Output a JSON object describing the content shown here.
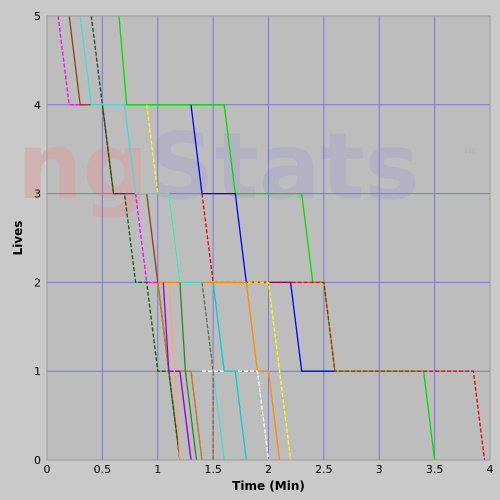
{
  "chart_data": {
    "type": "line",
    "xlabel": "Time (Min)",
    "ylabel": "Lives",
    "xlim": [
      0,
      4
    ],
    "ylim": [
      0,
      5
    ],
    "x_ticks": [
      "0",
      "0.5",
      "1",
      "1.5",
      "2",
      "2.5",
      "3",
      "3.5",
      "4"
    ],
    "y_ticks": [
      "0",
      "1",
      "2",
      "3",
      "4",
      "5"
    ],
    "grid": true,
    "watermark": {
      "text": "ngStats",
      "trademark": "™",
      "color_ng": "#d9a1a1",
      "color_stats": "#aaaac8"
    },
    "colors": {
      "background": "#bdbdbd",
      "grid": "#7878d8",
      "frame": "#c9c9c9"
    },
    "series": [
      {
        "color": "#00dd00",
        "dash": false,
        "points": [
          [
            0.65,
            5
          ],
          [
            0.72,
            4
          ],
          [
            1.6,
            4
          ],
          [
            1.7,
            3
          ],
          [
            2.3,
            3
          ],
          [
            2.4,
            2
          ],
          [
            2.5,
            2
          ],
          [
            2.6,
            1
          ],
          [
            3.4,
            1
          ],
          [
            3.5,
            0
          ]
        ]
      },
      {
        "color": "#0000ee",
        "dash": false,
        "points": [
          [
            1.3,
            4
          ],
          [
            1.4,
            3
          ],
          [
            1.7,
            3
          ],
          [
            1.8,
            2
          ],
          [
            2.2,
            2
          ],
          [
            2.3,
            1
          ],
          [
            2.6,
            1
          ]
        ]
      },
      {
        "color": "#ee0000",
        "dash": true,
        "points": [
          [
            1.4,
            3
          ],
          [
            1.5,
            2
          ],
          [
            2.5,
            2
          ],
          [
            2.6,
            1
          ],
          [
            3.45,
            1
          ],
          [
            3.85,
            1
          ],
          [
            3.95,
            0
          ]
        ]
      },
      {
        "color": "#ffff00",
        "dash": true,
        "points": [
          [
            0.9,
            4
          ],
          [
            1.0,
            3
          ],
          [
            1.1,
            3
          ],
          [
            1.2,
            2
          ],
          [
            2.0,
            2
          ],
          [
            2.1,
            1
          ],
          [
            2.2,
            0
          ]
        ]
      },
      {
        "color": "#ff8c00",
        "dash": false,
        "points": [
          [
            0.9,
            2
          ],
          [
            1.8,
            2
          ],
          [
            1.9,
            1
          ],
          [
            2.0,
            1
          ],
          [
            2.1,
            0
          ]
        ]
      },
      {
        "color": "#ffffff",
        "dash": true,
        "points": [
          [
            1.4,
            1
          ],
          [
            1.9,
            1
          ],
          [
            2.0,
            0
          ]
        ]
      },
      {
        "color": "#e080ff",
        "dash": false,
        "points": [
          [
            0.4,
            5
          ],
          [
            0.5,
            4
          ],
          [
            0.7,
            4
          ],
          [
            0.8,
            3
          ],
          [
            0.9,
            3
          ],
          [
            1.0,
            2
          ],
          [
            1.1,
            1
          ],
          [
            1.2,
            1
          ],
          [
            1.3,
            0
          ]
        ]
      },
      {
        "color": "#ff00ff",
        "dash": true,
        "points": [
          [
            0.1,
            5
          ],
          [
            0.2,
            4
          ],
          [
            0.5,
            4
          ],
          [
            0.6,
            3
          ],
          [
            0.8,
            3
          ],
          [
            0.9,
            2
          ],
          [
            1.0,
            2
          ],
          [
            1.1,
            1
          ],
          [
            1.3,
            1
          ],
          [
            1.4,
            0
          ]
        ]
      },
      {
        "color": "#8b4513",
        "dash": false,
        "points": [
          [
            0.2,
            5
          ],
          [
            0.3,
            4
          ],
          [
            0.5,
            4
          ],
          [
            0.6,
            3
          ],
          [
            0.9,
            3
          ],
          [
            1.0,
            2
          ],
          [
            1.1,
            1
          ],
          [
            1.2,
            0
          ]
        ]
      },
      {
        "color": "#006400",
        "dash": true,
        "points": [
          [
            0.4,
            5
          ],
          [
            0.5,
            4
          ],
          [
            0.6,
            3
          ],
          [
            0.7,
            3
          ],
          [
            0.8,
            2
          ],
          [
            0.9,
            2
          ],
          [
            1.0,
            1
          ],
          [
            1.1,
            1
          ],
          [
            1.2,
            0
          ]
        ]
      },
      {
        "color": "#40e0d0",
        "dash": false,
        "points": [
          [
            0.3,
            5
          ],
          [
            0.4,
            4
          ],
          [
            0.7,
            4
          ],
          [
            0.8,
            3
          ],
          [
            1.1,
            3
          ],
          [
            1.2,
            2
          ],
          [
            1.4,
            2
          ],
          [
            1.5,
            1
          ],
          [
            1.6,
            0
          ]
        ]
      },
      {
        "color": "#b8860b",
        "dash": false,
        "points": [
          [
            1.0,
            2
          ],
          [
            1.1,
            1
          ],
          [
            1.3,
            1
          ],
          [
            1.4,
            0
          ]
        ]
      },
      {
        "color": "#a0522d",
        "dash": true,
        "points": [
          [
            1.4,
            2
          ],
          [
            1.5,
            1
          ],
          [
            1.5,
            0
          ]
        ]
      },
      {
        "color": "#00ced1",
        "dash": false,
        "points": [
          [
            1.5,
            2
          ],
          [
            1.6,
            1
          ],
          [
            1.7,
            1
          ],
          [
            1.8,
            0
          ]
        ]
      },
      {
        "color": "#9400d3",
        "dash": false,
        "points": [
          [
            1.05,
            2
          ],
          [
            1.1,
            1
          ],
          [
            1.2,
            1
          ],
          [
            1.3,
            0
          ]
        ]
      },
      {
        "color": "#ffa07a",
        "dash": false,
        "points": [
          [
            1.1,
            2
          ],
          [
            1.15,
            1
          ],
          [
            1.2,
            0
          ]
        ]
      },
      {
        "color": "#228b22",
        "dash": false,
        "points": [
          [
            1.2,
            2
          ],
          [
            1.25,
            1
          ],
          [
            1.35,
            0
          ]
        ]
      }
    ]
  }
}
